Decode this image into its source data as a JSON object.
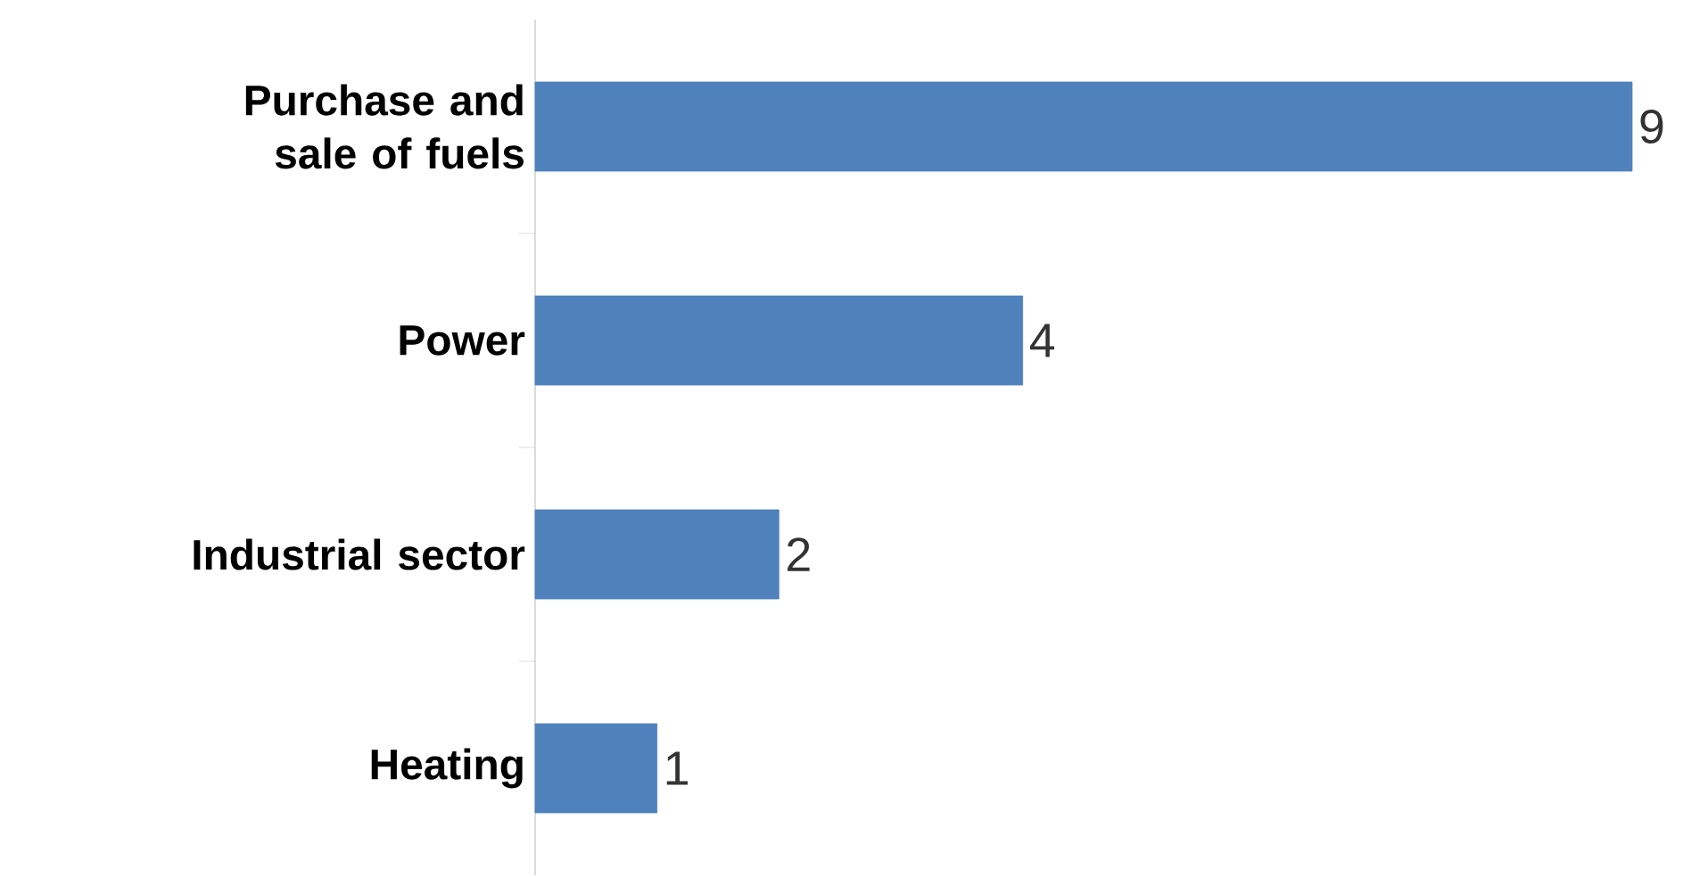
{
  "chart_data": {
    "type": "bar",
    "orientation": "horizontal",
    "categories": [
      "Purchase and sale of fuels",
      "Power",
      "Industrial sector",
      "Heating"
    ],
    "values": [
      9,
      4,
      2,
      1
    ],
    "color": "#4f81bd",
    "xlim": [
      0,
      9
    ],
    "data_labels": true
  }
}
